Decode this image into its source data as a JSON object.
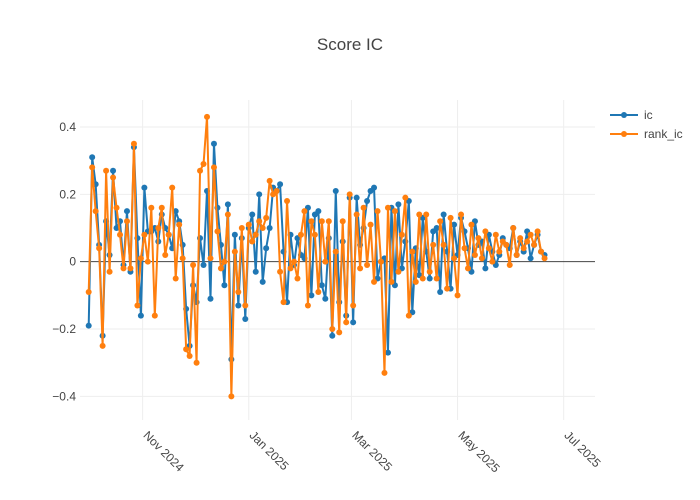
{
  "chart_data": {
    "type": "line",
    "title": "Score IC",
    "xlabel": "",
    "ylabel": "",
    "ylim": [
      -0.47,
      0.48
    ],
    "xlim": [
      "2024-09-26",
      "2025-07-19"
    ],
    "yticks": [
      0.4,
      0.2,
      0,
      -0.2,
      -0.4
    ],
    "ytick_labels": [
      "0.4",
      "0.2",
      "0",
      "−0.2",
      "−0.4"
    ],
    "xticks": [
      "2024-11-01",
      "2025-01-01",
      "2025-03-01",
      "2025-05-01",
      "2025-07-01"
    ],
    "xtick_labels": [
      "Nov 2024",
      "Jan 2025",
      "Mar 2025",
      "May 2025",
      "Jul 2025"
    ],
    "legend_position": "top-right",
    "series": [
      {
        "name": "ic",
        "color": "#1f77b4",
        "x": [
          "2024-10-01",
          "2024-10-03",
          "2024-10-05",
          "2024-10-07",
          "2024-10-09",
          "2024-10-11",
          "2024-10-13",
          "2024-10-15",
          "2024-10-17",
          "2024-10-19",
          "2024-10-21",
          "2024-10-23",
          "2024-10-25",
          "2024-10-27",
          "2024-10-29",
          "2024-10-31",
          "2024-11-02",
          "2024-11-04",
          "2024-11-06",
          "2024-11-08",
          "2024-11-10",
          "2024-11-12",
          "2024-11-14",
          "2024-11-16",
          "2024-11-18",
          "2024-11-20",
          "2024-11-22",
          "2024-11-24",
          "2024-11-26",
          "2024-11-28",
          "2024-11-30",
          "2024-12-02",
          "2024-12-04",
          "2024-12-06",
          "2024-12-08",
          "2024-12-10",
          "2024-12-12",
          "2024-12-14",
          "2024-12-16",
          "2024-12-18",
          "2024-12-20",
          "2024-12-22",
          "2024-12-24",
          "2024-12-26",
          "2024-12-28",
          "2024-12-30",
          "2025-01-01",
          "2025-01-03",
          "2025-01-05",
          "2025-01-07",
          "2025-01-09",
          "2025-01-11",
          "2025-01-13",
          "2025-01-15",
          "2025-01-17",
          "2025-01-19",
          "2025-01-21",
          "2025-01-23",
          "2025-01-25",
          "2025-01-27",
          "2025-01-29",
          "2025-01-31",
          "2025-02-02",
          "2025-02-04",
          "2025-02-06",
          "2025-02-08",
          "2025-02-10",
          "2025-02-12",
          "2025-02-14",
          "2025-02-16",
          "2025-02-18",
          "2025-02-20",
          "2025-02-22",
          "2025-02-24",
          "2025-02-26",
          "2025-02-28",
          "2025-03-02",
          "2025-03-04",
          "2025-03-06",
          "2025-03-08",
          "2025-03-10",
          "2025-03-12",
          "2025-03-14",
          "2025-03-16",
          "2025-03-18",
          "2025-03-20",
          "2025-03-22",
          "2025-03-24",
          "2025-03-26",
          "2025-03-28",
          "2025-03-30",
          "2025-04-01",
          "2025-04-03",
          "2025-04-05",
          "2025-04-07",
          "2025-04-09",
          "2025-04-11",
          "2025-04-13",
          "2025-04-15",
          "2025-04-17",
          "2025-04-19",
          "2025-04-21",
          "2025-04-23",
          "2025-04-25",
          "2025-04-27",
          "2025-04-29",
          "2025-05-01",
          "2025-05-03",
          "2025-05-05",
          "2025-05-07",
          "2025-05-09",
          "2025-05-11",
          "2025-05-13",
          "2025-05-15",
          "2025-05-17",
          "2025-05-19",
          "2025-05-21",
          "2025-05-23",
          "2025-05-25",
          "2025-05-27",
          "2025-05-29",
          "2025-05-31",
          "2025-06-02",
          "2025-06-04",
          "2025-06-06",
          "2025-06-08",
          "2025-06-10",
          "2025-06-12",
          "2025-06-14",
          "2025-06-16",
          "2025-06-18",
          "2025-06-20"
        ],
        "values": [
          -0.19,
          0.31,
          0.23,
          0.05,
          -0.22,
          0.12,
          0.02,
          0.27,
          0.1,
          0.12,
          -0.01,
          0.15,
          -0.03,
          0.34,
          0.07,
          -0.16,
          0.22,
          0.09,
          0.09,
          0.1,
          0.06,
          0.14,
          0.1,
          0.08,
          0.04,
          0.15,
          0.12,
          0.05,
          -0.14,
          -0.25,
          -0.07,
          -0.12,
          0.07,
          -0.01,
          0.21,
          -0.11,
          0.35,
          0.16,
          0.05,
          -0.07,
          0.17,
          -0.29,
          0.08,
          -0.13,
          0.07,
          -0.17,
          0.1,
          0.14,
          -0.03,
          0.2,
          -0.06,
          0.04,
          0.1,
          0.22,
          0.21,
          0.23,
          0.03,
          -0.12,
          0.08,
          -0.01,
          0.07,
          0.02,
          0.01,
          0.16,
          -0.1,
          0.14,
          0.15,
          -0.07,
          -0.11,
          0.07,
          -0.22,
          0.21,
          -0.12,
          0.06,
          -0.16,
          0.19,
          -0.18,
          0.19,
          0.05,
          0.1,
          0.18,
          0.21,
          0.22,
          -0.05,
          0.0,
          0.01,
          -0.27,
          0.16,
          -0.07,
          0.17,
          -0.02,
          0.06,
          0.18,
          -0.15,
          0.04,
          -0.04,
          0.13,
          0.03,
          -0.05,
          0.09,
          0.1,
          -0.09,
          0.14,
          0.03,
          -0.08,
          0.11,
          0.02,
          0.13,
          0.09,
          0.04,
          -0.03,
          0.12,
          0.05,
          0.06,
          -0.02,
          0.08,
          0.03,
          -0.01,
          0.02,
          0.07,
          0.05,
          0.04,
          0.1,
          0.02,
          0.06,
          0.03,
          0.09,
          0.01,
          0.05,
          0.08,
          0.03,
          0.02
        ]
      },
      {
        "name": "rank_ic",
        "color": "#ff7f0e",
        "x": [
          "2024-10-01",
          "2024-10-03",
          "2024-10-05",
          "2024-10-07",
          "2024-10-09",
          "2024-10-11",
          "2024-10-13",
          "2024-10-15",
          "2024-10-17",
          "2024-10-19",
          "2024-10-21",
          "2024-10-23",
          "2024-10-25",
          "2024-10-27",
          "2024-10-29",
          "2024-10-31",
          "2024-11-02",
          "2024-11-04",
          "2024-11-06",
          "2024-11-08",
          "2024-11-10",
          "2024-11-12",
          "2024-11-14",
          "2024-11-16",
          "2024-11-18",
          "2024-11-20",
          "2024-11-22",
          "2024-11-24",
          "2024-11-26",
          "2024-11-28",
          "2024-11-30",
          "2024-12-02",
          "2024-12-04",
          "2024-12-06",
          "2024-12-08",
          "2024-12-10",
          "2024-12-12",
          "2024-12-14",
          "2024-12-16",
          "2024-12-18",
          "2024-12-20",
          "2024-12-22",
          "2024-12-24",
          "2024-12-26",
          "2024-12-28",
          "2024-12-30",
          "2025-01-01",
          "2025-01-03",
          "2025-01-05",
          "2025-01-07",
          "2025-01-09",
          "2025-01-11",
          "2025-01-13",
          "2025-01-15",
          "2025-01-17",
          "2025-01-19",
          "2025-01-21",
          "2025-01-23",
          "2025-01-25",
          "2025-01-27",
          "2025-01-29",
          "2025-01-31",
          "2025-02-02",
          "2025-02-04",
          "2025-02-06",
          "2025-02-08",
          "2025-02-10",
          "2025-02-12",
          "2025-02-14",
          "2025-02-16",
          "2025-02-18",
          "2025-02-20",
          "2025-02-22",
          "2025-02-24",
          "2025-02-26",
          "2025-02-28",
          "2025-03-02",
          "2025-03-04",
          "2025-03-06",
          "2025-03-08",
          "2025-03-10",
          "2025-03-12",
          "2025-03-14",
          "2025-03-16",
          "2025-03-18",
          "2025-03-20",
          "2025-03-22",
          "2025-03-24",
          "2025-03-26",
          "2025-03-28",
          "2025-03-30",
          "2025-04-01",
          "2025-04-03",
          "2025-04-05",
          "2025-04-07",
          "2025-04-09",
          "2025-04-11",
          "2025-04-13",
          "2025-04-15",
          "2025-04-17",
          "2025-04-19",
          "2025-04-21",
          "2025-04-23",
          "2025-04-25",
          "2025-04-27",
          "2025-04-29",
          "2025-05-01",
          "2025-05-03",
          "2025-05-05",
          "2025-05-07",
          "2025-05-09",
          "2025-05-11",
          "2025-05-13",
          "2025-05-15",
          "2025-05-17",
          "2025-05-19",
          "2025-05-21",
          "2025-05-23",
          "2025-05-25",
          "2025-05-27",
          "2025-05-29",
          "2025-05-31",
          "2025-06-02",
          "2025-06-04",
          "2025-06-06",
          "2025-06-08",
          "2025-06-10",
          "2025-06-12",
          "2025-06-14",
          "2025-06-16",
          "2025-06-18",
          "2025-06-20"
        ],
        "values": [
          -0.09,
          0.28,
          0.15,
          0.04,
          -0.25,
          0.27,
          -0.03,
          0.25,
          0.16,
          0.08,
          -0.02,
          0.12,
          -0.02,
          0.35,
          -0.13,
          0.01,
          0.08,
          0.0,
          0.16,
          -0.16,
          0.1,
          0.16,
          0.02,
          0.08,
          0.22,
          -0.05,
          0.11,
          0.01,
          -0.26,
          -0.28,
          -0.01,
          -0.3,
          0.27,
          0.29,
          0.43,
          0.01,
          0.28,
          0.09,
          -0.02,
          0.0,
          0.14,
          -0.4,
          0.03,
          -0.09,
          0.1,
          -0.13,
          0.11,
          0.06,
          0.08,
          0.12,
          0.1,
          0.13,
          0.24,
          0.2,
          0.21,
          -0.03,
          -0.12,
          0.18,
          -0.02,
          0.0,
          -0.05,
          0.08,
          0.15,
          -0.13,
          0.12,
          0.08,
          -0.09,
          0.12,
          0.0,
          0.12,
          -0.2,
          0.03,
          -0.21,
          0.12,
          -0.18,
          0.2,
          -0.13,
          0.14,
          -0.02,
          0.16,
          -0.01,
          0.11,
          -0.06,
          0.15,
          0.0,
          -0.33,
          0.16,
          -0.06,
          0.15,
          -0.03,
          0.08,
          0.19,
          -0.16,
          0.03,
          -0.06,
          0.14,
          -0.05,
          0.14,
          -0.03,
          0.05,
          -0.05,
          0.12,
          0.05,
          -0.08,
          0.13,
          0.01,
          -0.1,
          0.14,
          0.04,
          -0.02,
          0.11,
          0.02,
          0.07,
          0.01,
          0.09,
          0.04,
          0.0,
          0.08,
          0.03,
          0.06,
          0.05,
          -0.01,
          0.1,
          0.02,
          0.07,
          0.04,
          0.06,
          0.08,
          0.05,
          0.09,
          0.03,
          0.01
        ]
      }
    ]
  }
}
